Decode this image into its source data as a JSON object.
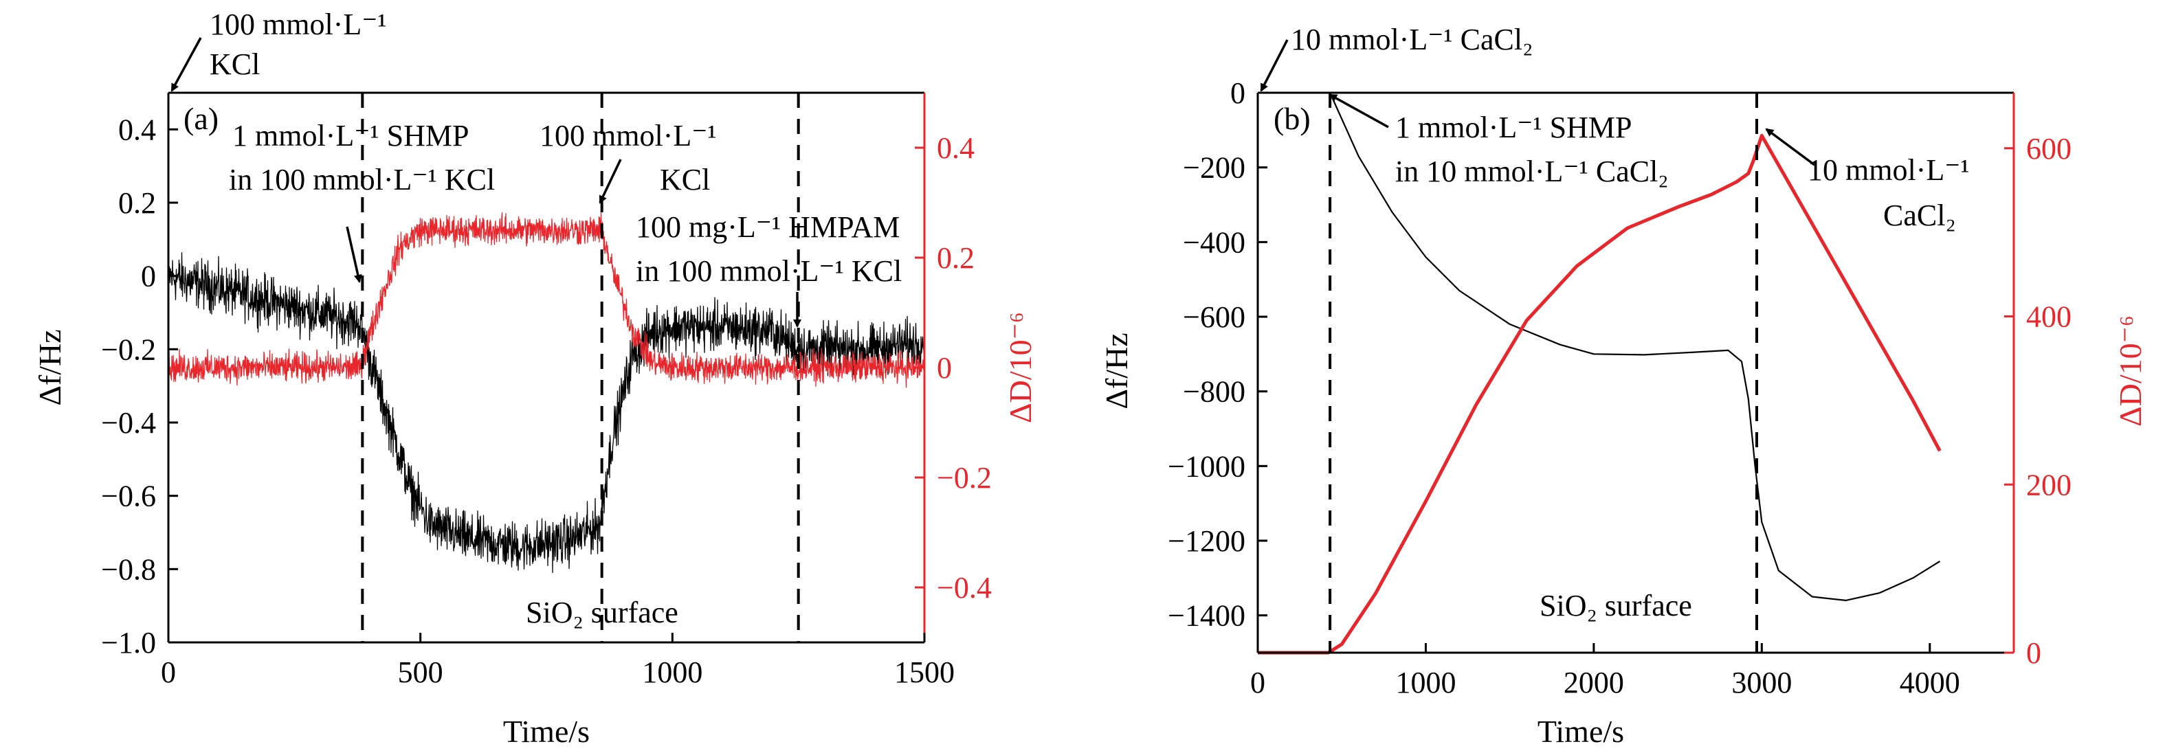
{
  "chart_data": [
    {
      "type": "line",
      "panel_label": "(a)",
      "xlabel": "Time/s",
      "ylabel_left": "Δf/Hz",
      "ylabel_right": "ΔD/10⁻⁶",
      "xlim": [
        0,
        1500
      ],
      "ylim_left": [
        -1.0,
        0.5
      ],
      "ylim_right": [
        -0.5,
        0.5
      ],
      "x_ticks": [
        0,
        500,
        1000,
        1500
      ],
      "y_left_ticks": [
        0.4,
        0.2,
        0,
        -0.2,
        -0.4,
        -0.6,
        -0.8,
        -1.0
      ],
      "y_left_tick_labels": [
        "0.4",
        "0.2",
        "0",
        "−0.2",
        "−0.4",
        "−0.6",
        "−0.8",
        "−1.0"
      ],
      "y_right_ticks": [
        0.4,
        0.2,
        0,
        -0.2,
        -0.4
      ],
      "y_right_tick_labels": [
        "0.4",
        "0.2",
        "0",
        "−0.2",
        "−0.4"
      ],
      "vlines": [
        385,
        860,
        1250
      ],
      "surface_label": "SiO₂ surface",
      "series": [
        {
          "axis": "left",
          "color": "#000000",
          "noise": 0.05,
          "x": [
            0,
            380,
            420,
            480,
            520,
            600,
            700,
            800,
            855,
            880,
            920,
            960,
            1000,
            1100,
            1200,
            1250,
            1300,
            1400,
            1500
          ],
          "y": [
            0.0,
            -0.13,
            -0.32,
            -0.58,
            -0.68,
            -0.72,
            -0.74,
            -0.72,
            -0.68,
            -0.45,
            -0.22,
            -0.15,
            -0.14,
            -0.14,
            -0.15,
            -0.2,
            -0.2,
            -0.2,
            -0.18
          ]
        },
        {
          "axis": "right",
          "color": "#e8262b",
          "noise": 0.02,
          "x": [
            0,
            380,
            420,
            460,
            500,
            600,
            700,
            800,
            860,
            880,
            920,
            960,
            1000,
            1100,
            1200,
            1300,
            1400,
            1500
          ],
          "y": [
            0.0,
            0.0,
            0.12,
            0.22,
            0.25,
            0.25,
            0.25,
            0.25,
            0.25,
            0.18,
            0.07,
            0.01,
            0.0,
            0.0,
            0.0,
            0.0,
            0.0,
            0.0
          ]
        }
      ],
      "annotations": [
        {
          "lines": [
            "100 mmol·L⁻¹",
            "KCl"
          ]
        },
        {
          "lines": [
            "1 mmol·L⁻¹ SHMP",
            "in 100 mmol·L⁻¹ KCl"
          ]
        },
        {
          "lines": [
            "100 mmol·L⁻¹",
            "KCl"
          ]
        },
        {
          "lines": [
            "100 mg·L⁻¹ HMPAM",
            "in 100 mmol·L⁻¹ KCl"
          ]
        }
      ]
    },
    {
      "type": "line",
      "panel_label": "(b)",
      "xlabel": "Time/s",
      "ylabel_left": "Δf/Hz",
      "ylabel_right": "ΔD/10⁻⁶",
      "xlim": [
        0,
        4500
      ],
      "ylim_left": [
        -1500,
        0
      ],
      "ylim_right": [
        0,
        666
      ],
      "x_ticks": [
        0,
        1000,
        2000,
        3000,
        4000
      ],
      "y_left_ticks": [
        0,
        -200,
        -400,
        -600,
        -800,
        -1000,
        -1200,
        -1400
      ],
      "y_left_tick_labels": [
        "0",
        "−200",
        "−400",
        "−600",
        "−800",
        "−1000",
        "−1200",
        "−1400"
      ],
      "y_right_ticks": [
        0,
        200,
        400,
        600
      ],
      "y_right_tick_labels": [
        "0",
        "200",
        "400",
        "600"
      ],
      "vlines": [
        430,
        2970
      ],
      "surface_label": "SiO₂ surface",
      "series": [
        {
          "axis": "left",
          "color": "#000000",
          "x": [
            0,
            430,
            600,
            800,
            1000,
            1200,
            1500,
            1800,
            2000,
            2300,
            2600,
            2800,
            2880,
            2920,
            2960,
            3000,
            3100,
            3300,
            3500,
            3700,
            3900,
            4060
          ],
          "y": [
            0,
            0,
            -170,
            -320,
            -440,
            -530,
            -620,
            -675,
            -700,
            -702,
            -695,
            -690,
            -720,
            -820,
            -1000,
            -1150,
            -1280,
            -1350,
            -1360,
            -1340,
            -1300,
            -1255
          ]
        },
        {
          "axis": "right",
          "color": "#e8262b",
          "x": [
            0,
            420,
            500,
            700,
            1000,
            1300,
            1600,
            1900,
            2200,
            2500,
            2700,
            2850,
            2920,
            2950,
            3000,
            3100,
            3300,
            3500,
            3700,
            3900,
            4060
          ],
          "y": [
            0,
            0,
            10,
            70,
            180,
            295,
            395,
            460,
            505,
            530,
            545,
            560,
            570,
            585,
            615,
            580,
            510,
            440,
            370,
            300,
            240
          ]
        }
      ],
      "annotations": [
        {
          "lines": [
            "10 mmol·L⁻¹ CaCl₂"
          ]
        },
        {
          "lines": [
            "1 mmol·L⁻¹ SHMP",
            "in 10 mmol·L⁻¹ CaCl₂"
          ]
        },
        {
          "lines": [
            "10 mmol·L⁻¹",
            "CaCl₂"
          ]
        }
      ]
    }
  ]
}
